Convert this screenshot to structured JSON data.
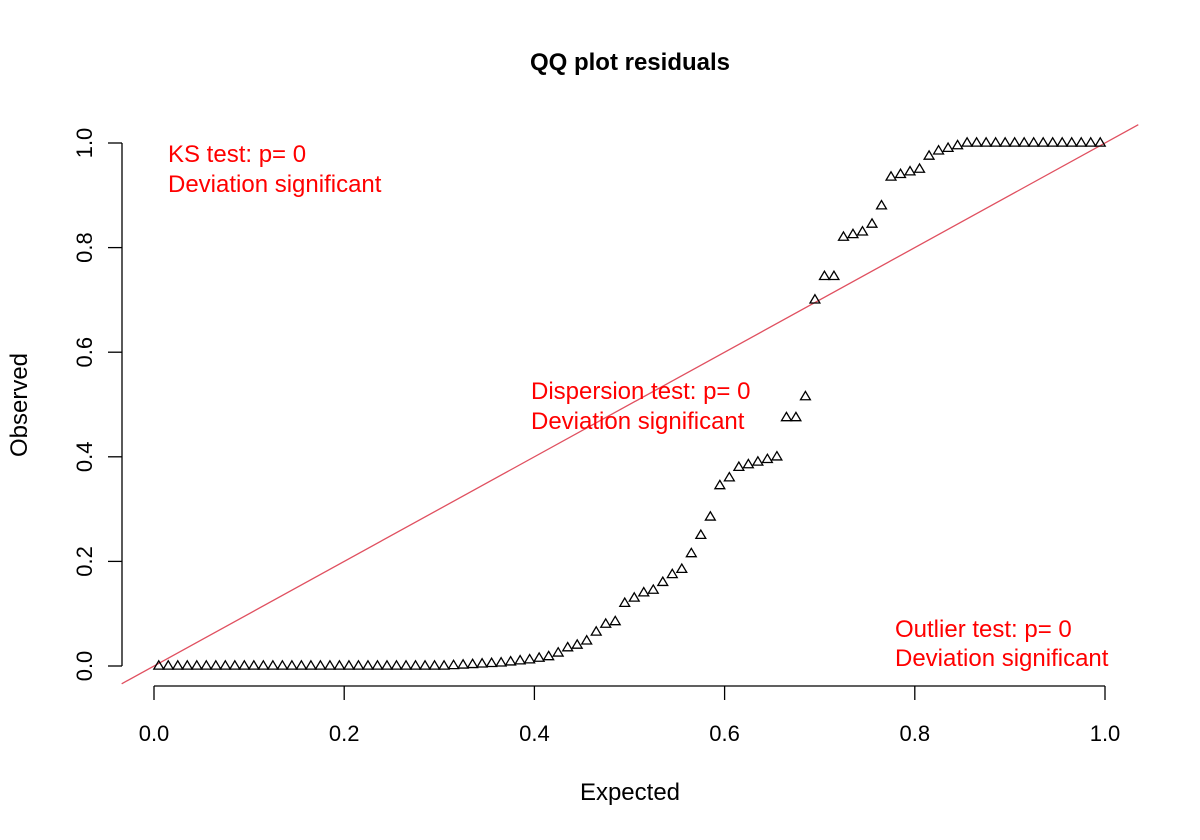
{
  "chart_data": {
    "type": "scatter",
    "title": "QQ plot residuals",
    "xlabel": "Expected",
    "ylabel": "Observed",
    "xlim": [
      0,
      1
    ],
    "ylim": [
      0,
      1
    ],
    "x_ticks": [
      "0.0",
      "0.2",
      "0.4",
      "0.6",
      "0.8",
      "1.0"
    ],
    "y_ticks": [
      "0.0",
      "0.2",
      "0.4",
      "0.6",
      "0.8",
      "1.0"
    ],
    "grid": false,
    "marker": "open-triangle",
    "colors": {
      "points": "#000000",
      "reference_line": "#e05060",
      "annotations": "#ff0000"
    },
    "reference_line": {
      "slope": 1,
      "intercept": 0
    },
    "annotations": [
      {
        "id": "ks",
        "lines": [
          "KS test: p= 0",
          "Deviation  significant"
        ]
      },
      {
        "id": "dispersion",
        "lines": [
          "Dispersion test: p= 0",
          "Deviation  significant"
        ]
      },
      {
        "id": "outlier",
        "lines": [
          "Outlier test: p= 0",
          "Deviation  significant"
        ]
      }
    ],
    "x": [
      0.005,
      0.015,
      0.025,
      0.035,
      0.045,
      0.055,
      0.065,
      0.075,
      0.085,
      0.095,
      0.105,
      0.115,
      0.125,
      0.135,
      0.145,
      0.155,
      0.165,
      0.175,
      0.185,
      0.195,
      0.205,
      0.215,
      0.225,
      0.235,
      0.245,
      0.255,
      0.265,
      0.275,
      0.285,
      0.295,
      0.305,
      0.315,
      0.325,
      0.335,
      0.345,
      0.355,
      0.365,
      0.375,
      0.385,
      0.395,
      0.405,
      0.415,
      0.425,
      0.435,
      0.445,
      0.455,
      0.465,
      0.475,
      0.485,
      0.495,
      0.505,
      0.515,
      0.525,
      0.535,
      0.545,
      0.555,
      0.565,
      0.575,
      0.585,
      0.595,
      0.605,
      0.615,
      0.625,
      0.635,
      0.645,
      0.655,
      0.665,
      0.675,
      0.685,
      0.695,
      0.705,
      0.715,
      0.725,
      0.735,
      0.745,
      0.755,
      0.765,
      0.775,
      0.785,
      0.795,
      0.805,
      0.815,
      0.825,
      0.835,
      0.845,
      0.855,
      0.865,
      0.875,
      0.885,
      0.895,
      0.905,
      0.915,
      0.925,
      0.935,
      0.945,
      0.955,
      0.965,
      0.975,
      0.985,
      0.995
    ],
    "y": [
      0.0,
      0.0,
      0.0,
      0.0,
      0.0,
      0.0,
      0.0,
      0.0,
      0.0,
      0.0,
      0.0,
      0.0,
      0.0,
      0.0,
      0.0,
      0.0,
      0.0,
      0.0,
      0.0,
      0.0,
      0.0,
      0.0,
      0.0,
      0.0,
      0.0,
      0.0,
      0.0,
      0.0,
      0.0,
      0.0,
      0.0,
      0.001,
      0.002,
      0.003,
      0.004,
      0.005,
      0.006,
      0.008,
      0.01,
      0.012,
      0.015,
      0.018,
      0.025,
      0.035,
      0.04,
      0.048,
      0.065,
      0.08,
      0.085,
      0.12,
      0.13,
      0.14,
      0.145,
      0.16,
      0.175,
      0.185,
      0.215,
      0.25,
      0.285,
      0.345,
      0.36,
      0.38,
      0.385,
      0.39,
      0.395,
      0.4,
      0.475,
      0.475,
      0.515,
      0.7,
      0.745,
      0.745,
      0.82,
      0.825,
      0.83,
      0.845,
      0.88,
      0.935,
      0.94,
      0.945,
      0.95,
      0.975,
      0.985,
      0.99,
      0.995,
      1.0,
      1.0,
      1.0,
      1.0,
      1.0,
      1.0,
      1.0,
      1.0,
      1.0,
      1.0,
      1.0,
      1.0,
      1.0,
      1.0,
      1.0
    ]
  }
}
